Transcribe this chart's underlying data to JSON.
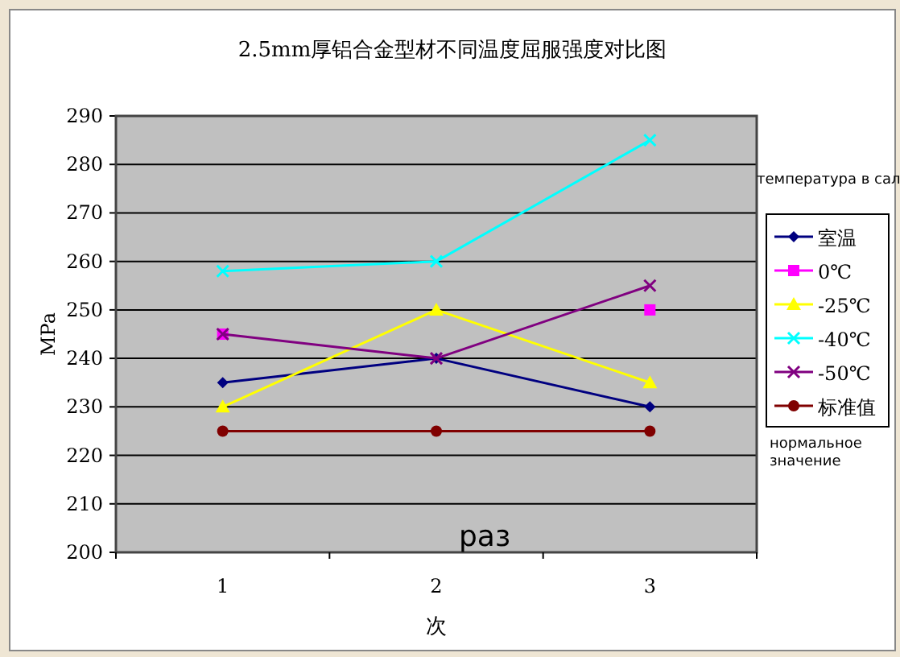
{
  "chart_data": {
    "type": "line",
    "title": "2.5mm厚铝合金型材不同温度屈服强度对比图",
    "xlabel": "次",
    "ylabel": "MPa",
    "categories": [
      "1",
      "2",
      "3"
    ],
    "series": [
      {
        "name": "室温",
        "color": "#000080",
        "marker": "diamond",
        "values": [
          235,
          240,
          230
        ]
      },
      {
        "name": "0℃",
        "type": "scatter",
        "color": "#ff00ff",
        "marker": "square",
        "values": [
          245,
          null,
          250
        ]
      },
      {
        "name": "-25℃",
        "color": "#ffff00",
        "marker": "triangle",
        "values": [
          230,
          250,
          235
        ]
      },
      {
        "name": "-40℃",
        "color": "#00ffff",
        "marker": "cross",
        "values": [
          258,
          260,
          285
        ]
      },
      {
        "name": "-50℃",
        "color": "#800080",
        "marker": "cross",
        "values": [
          245,
          240,
          255
        ]
      },
      {
        "name": "标准值",
        "color": "#800000",
        "marker": "circle",
        "values": [
          225,
          225,
          225
        ]
      }
    ],
    "ylim": [
      200,
      290
    ],
    "yticks": [
      200,
      210,
      220,
      230,
      240,
      250,
      260,
      270,
      280,
      290
    ],
    "grid": "y",
    "legend": "right",
    "line_style": "solid",
    "annotations": [
      "температура в сал",
      "нормальное значение",
      "раз"
    ]
  }
}
